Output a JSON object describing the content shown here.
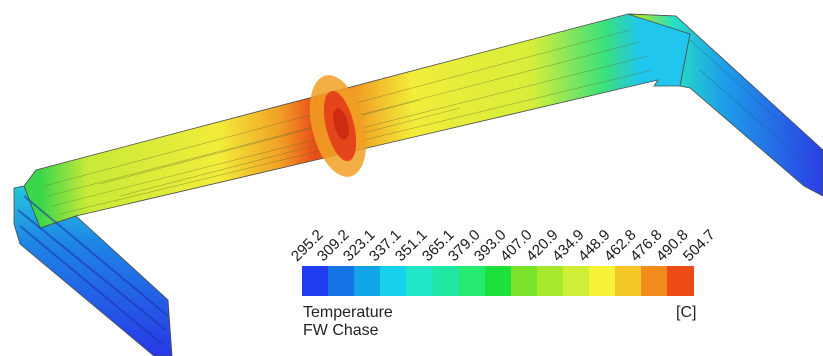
{
  "legend": {
    "quantity": "Temperature",
    "unit": "[C]",
    "label": "FW Chase",
    "ticks": [
      "295.2",
      "309.2",
      "323.1",
      "337.1",
      "351.1",
      "365.1",
      "379.0",
      "393.0",
      "407.0",
      "420.9",
      "434.9",
      "448.9",
      "462.8",
      "476.8",
      "490.8",
      "504.7"
    ],
    "colors": [
      "#1f3cf0",
      "#1474e6",
      "#14a4e8",
      "#16d0ee",
      "#22e6c8",
      "#20e8a2",
      "#26ea72",
      "#1de03c",
      "#7ae22a",
      "#a6e82e",
      "#cfee36",
      "#f6f236",
      "#f4c628",
      "#f28c1c",
      "#ec4a16"
    ]
  },
  "model": {
    "colors": {
      "deep_blue": "#2233e6",
      "blue": "#1e7fe4",
      "cyan": "#20c6ee",
      "teal": "#26e0c4",
      "green": "#3ce07a",
      "light_green": "#a8e634",
      "yellow_green": "#cfec3a",
      "yellow": "#f2ec3a",
      "orange": "#f1a024",
      "red": "#e94a18",
      "dark_red": "#cf2a12"
    }
  }
}
